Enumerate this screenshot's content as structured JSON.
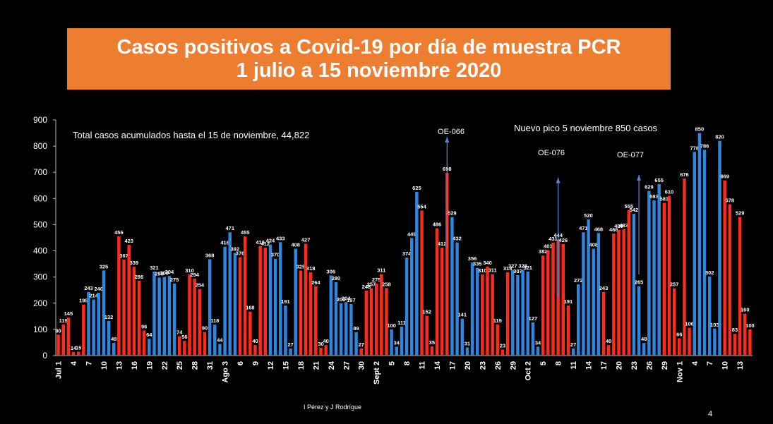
{
  "slide": {
    "title_line1": "Casos positivos a Covid-19 por día de muestra PCR",
    "title_line2": "1  julio a 15 noviembre 2020",
    "credit": "I Pérez y J Rodrígue",
    "page_number": "4",
    "title_bg": "#ED7D31"
  },
  "chart_data": {
    "type": "bar",
    "title": "",
    "xlabel": "",
    "ylabel": "",
    "ylim": [
      0,
      900
    ],
    "yticks": [
      0,
      100,
      200,
      300,
      400,
      500,
      600,
      700,
      800,
      900
    ],
    "grid": false,
    "colors": {
      "red": "#FF2A1A",
      "blue": "#2E86DE",
      "label": "#FFFFFF"
    },
    "color_pattern": "alternating blocks of 6 red days and 6 blue days starting 1 July",
    "categories": [
      "Jul 1",
      "",
      "",
      "4",
      "",
      "",
      "7",
      "",
      "",
      "10",
      "",
      "",
      "13",
      "",
      "",
      "16",
      "",
      "",
      "19",
      "",
      "",
      "22",
      "",
      "",
      "25",
      "",
      "",
      "28",
      "",
      "",
      "31",
      "",
      "",
      "Ago 3",
      "",
      "",
      "6",
      "",
      "",
      "9",
      "",
      "",
      "12",
      "",
      "",
      "15",
      "",
      "",
      "18",
      "",
      "",
      "21",
      "",
      "",
      "24",
      "",
      "",
      "27",
      "",
      "",
      "30",
      "",
      "",
      "Sept 2",
      "",
      "",
      "5",
      "",
      "",
      "8",
      "",
      "",
      "11",
      "",
      "",
      "14",
      "",
      "",
      "17",
      "",
      "",
      "20",
      "",
      "",
      "23",
      "",
      "",
      "26",
      "",
      "",
      "29",
      "",
      "",
      "Oct 2",
      "",
      "",
      "5",
      "",
      "",
      "8",
      "",
      "",
      "11",
      "",
      "",
      "14",
      "",
      "",
      "17",
      "",
      "",
      "20",
      "",
      "",
      "23",
      "",
      "",
      "26",
      "",
      "",
      "29",
      "",
      "",
      "Nov 1",
      "",
      "",
      "4",
      "",
      "",
      "7",
      "",
      "",
      "10",
      "",
      "",
      "13",
      "",
      ""
    ],
    "values": [
      80,
      119,
      145,
      14,
      15,
      195,
      243,
      214,
      240,
      325,
      132,
      49,
      456,
      367,
      423,
      339,
      286,
      96,
      64,
      321,
      298,
      300,
      304,
      275,
      74,
      56,
      310,
      294,
      254,
      90,
      368,
      118,
      44,
      416,
      471,
      392,
      376,
      455,
      168,
      40,
      418,
      412,
      424,
      370,
      433,
      191,
      27,
      408,
      325,
      427,
      318,
      264,
      30,
      40,
      306,
      280,
      200,
      204,
      197,
      89,
      27,
      248,
      257,
      275,
      311,
      258,
      100,
      34,
      111,
      374,
      449,
      625,
      554,
      152,
      35,
      486,
      412,
      698,
      529,
      432,
      141,
      31,
      356,
      335,
      310,
      340,
      311,
      119,
      23,
      318,
      327,
      307,
      328,
      321,
      127,
      34,
      382,
      403,
      431,
      444,
      426,
      191,
      27,
      272,
      471,
      520,
      408,
      468,
      243,
      40,
      466,
      480,
      483,
      555,
      542,
      265,
      48,
      629,
      593,
      655,
      583,
      610,
      257,
      66,
      676,
      106,
      778,
      850,
      786,
      302,
      103,
      820,
      669,
      578,
      83,
      529,
      160,
      100
    ],
    "annotations": [
      {
        "text": "Total casos acumulados  hasta el 15 de noviembre, 44,822"
      },
      {
        "text": "Nuevo pico 5 noviembre  850 casos"
      },
      {
        "text": "OE-066",
        "from": 410,
        "to": 835,
        "at_index": 77
      },
      {
        "text": "OE-076",
        "from": 225,
        "to": 680,
        "at_index": 99
      },
      {
        "text": "OE-077",
        "from": 310,
        "to": 690,
        "at_index": 115
      }
    ]
  }
}
